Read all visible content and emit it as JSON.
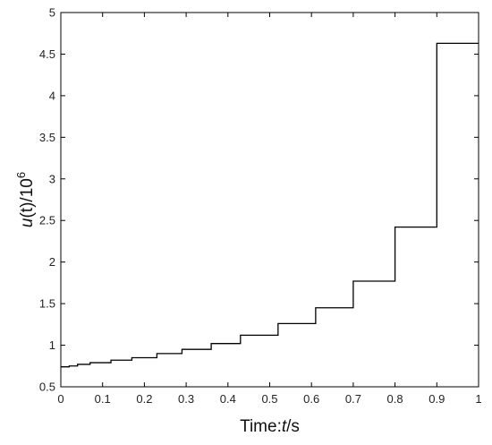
{
  "chart_data": {
    "type": "line",
    "step": "post",
    "title": "",
    "xlabel": "Time:",
    "xlabel_var": "t",
    "xlabel_unit": "/s",
    "ylabel_var": "u",
    "ylabel_arg": "(t)/10",
    "ylabel_exp": "6",
    "xlim": [
      0,
      1
    ],
    "ylim": [
      0.5,
      5
    ],
    "xticks": [
      0,
      0.1,
      0.2,
      0.3,
      0.4,
      0.5,
      0.6,
      0.7,
      0.8,
      0.9,
      1
    ],
    "xtick_labels": [
      "0",
      "0.1",
      "0.2",
      "0.3",
      "0.4",
      "0.5",
      "0.6",
      "0.7",
      "0.8",
      "0.9",
      "1"
    ],
    "yticks": [
      0.5,
      1,
      1.5,
      2,
      2.5,
      3,
      3.5,
      4,
      4.5,
      5
    ],
    "ytick_labels": [
      "0.5",
      "1",
      "1.5",
      "2",
      "2.5",
      "3",
      "3.5",
      "4",
      "4.5",
      "5"
    ],
    "grid": false,
    "line_color": "#000000",
    "series": [
      {
        "x": [
          0,
          0.02,
          0.04,
          0.07,
          0.12,
          0.17,
          0.23,
          0.29,
          0.36,
          0.43,
          0.52,
          0.61,
          0.7,
          0.8,
          0.9,
          1.0
        ],
        "y": [
          0.74,
          0.75,
          0.77,
          0.79,
          0.82,
          0.85,
          0.9,
          0.95,
          1.02,
          1.12,
          1.26,
          1.45,
          1.77,
          2.42,
          4.63,
          4.63
        ]
      }
    ]
  }
}
